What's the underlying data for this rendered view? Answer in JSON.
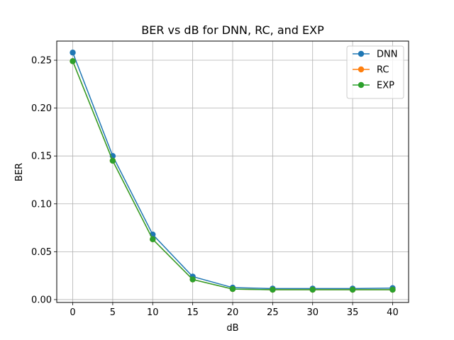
{
  "chart_data": {
    "type": "line",
    "title": "BER vs dB for DNN, RC, and EXP",
    "xlabel": "dB",
    "ylabel": "BER",
    "x": [
      0,
      5,
      10,
      15,
      20,
      25,
      30,
      35,
      40
    ],
    "xticks": [
      "0",
      "5",
      "10",
      "15",
      "20",
      "25",
      "30",
      "35",
      "40"
    ],
    "yticks": [
      "0.00",
      "0.05",
      "0.10",
      "0.15",
      "0.20",
      "0.25"
    ],
    "xlim": [
      -2,
      42
    ],
    "ylim": [
      -0.003,
      0.27
    ],
    "grid": true,
    "legend_position": "top-right",
    "series": [
      {
        "name": "DNN",
        "color": "#1f77b4",
        "values": [
          0.258,
          0.15,
          0.068,
          0.024,
          0.0125,
          0.0115,
          0.0115,
          0.0115,
          0.012
        ]
      },
      {
        "name": "RC",
        "color": "#ff7f0e",
        "values": [
          0.249,
          0.145,
          0.063,
          0.021,
          0.011,
          0.0103,
          0.0103,
          0.0103,
          0.0103
        ]
      },
      {
        "name": "EXP",
        "color": "#2ca02c",
        "values": [
          0.249,
          0.145,
          0.063,
          0.021,
          0.011,
          0.0103,
          0.0103,
          0.0103,
          0.0103
        ]
      }
    ]
  }
}
